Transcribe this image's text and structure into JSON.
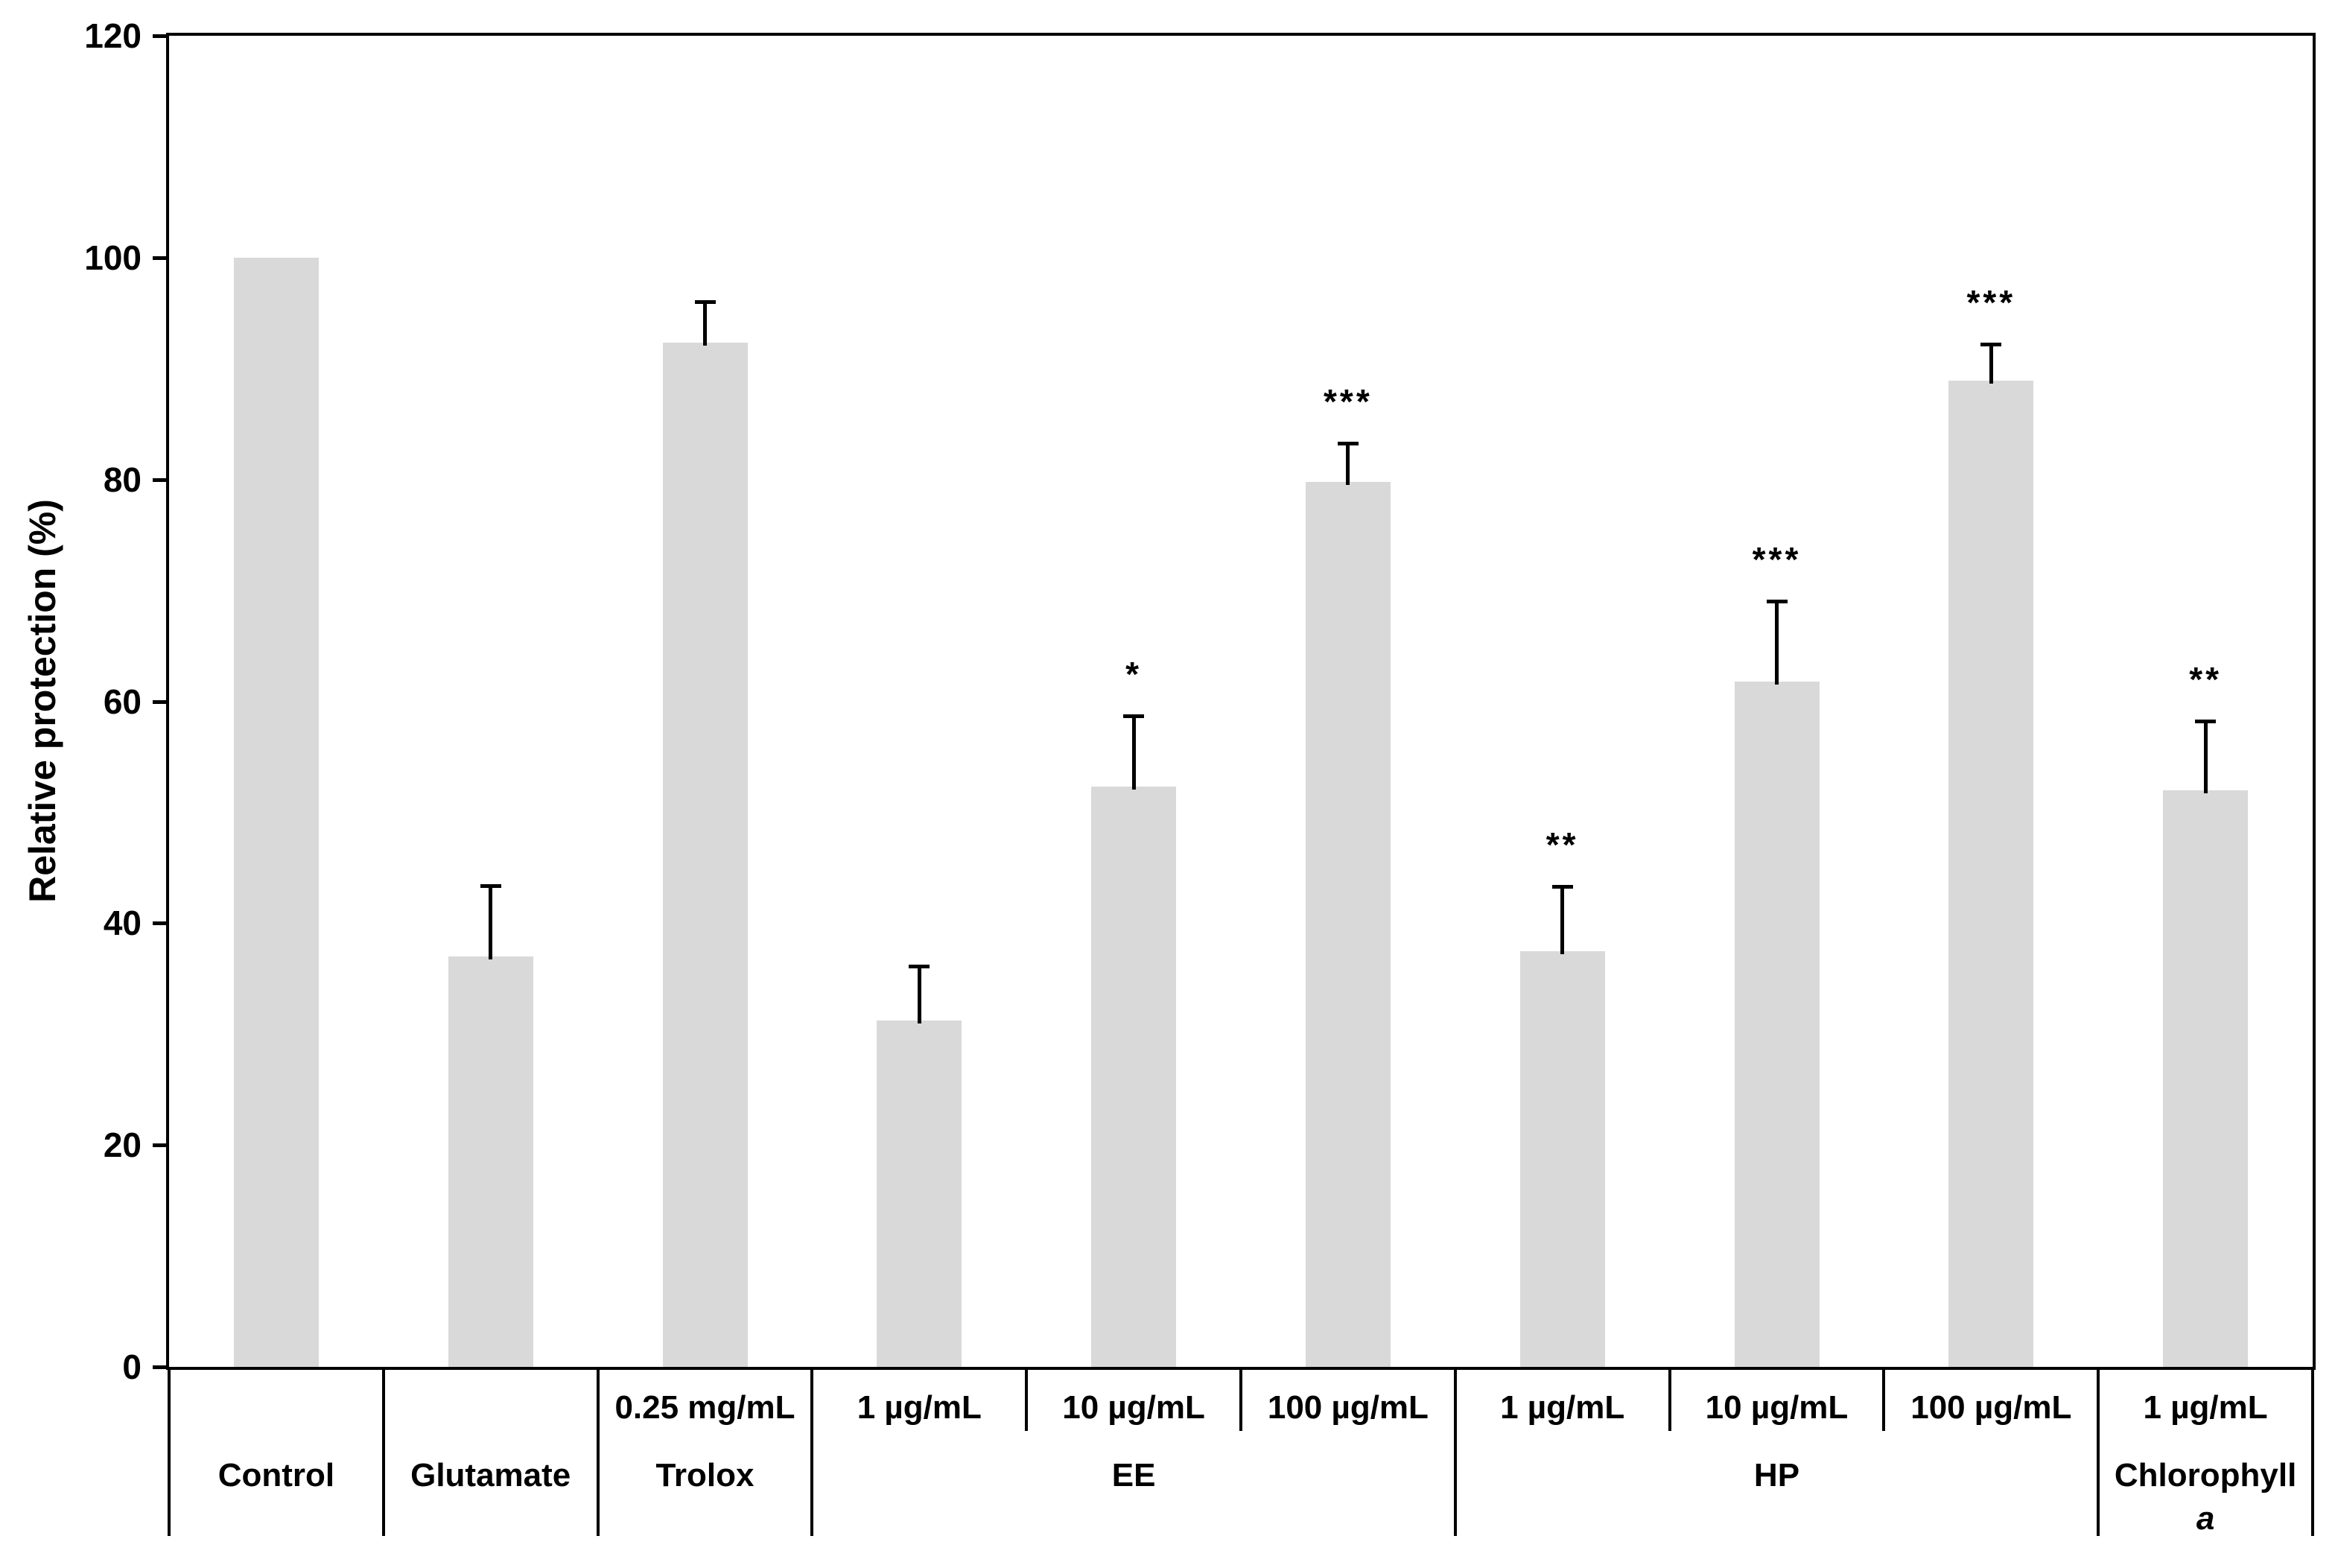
{
  "chart_data": {
    "type": "bar",
    "title": "",
    "xlabel": "",
    "ylabel": "Relative protection (%)",
    "ylim": [
      0,
      120
    ],
    "yticks": [
      0,
      20,
      40,
      60,
      80,
      100,
      120
    ],
    "grid": false,
    "legend": "none",
    "bar_color": "#d9d9d9",
    "axis_color": "#000000",
    "error_bar_color": "#000000",
    "groups": [
      {
        "label": "Control",
        "label_italic": "",
        "span": 1
      },
      {
        "label": "Glutamate",
        "label_italic": "",
        "span": 1
      },
      {
        "label": "Trolox",
        "label_italic": "",
        "span": 1
      },
      {
        "label": "EE",
        "label_italic": "",
        "span": 3
      },
      {
        "label": "HP",
        "label_italic": "",
        "span": 3
      },
      {
        "label": "Chlorophyll",
        "label_italic": "a",
        "span": 1
      }
    ],
    "bars": [
      {
        "group": "Control",
        "concentration": "",
        "value": 100.0,
        "error_up": 0,
        "stars": ""
      },
      {
        "group": "Glutamate",
        "concentration": "",
        "value": 37.0,
        "error_up": 6.4,
        "stars": ""
      },
      {
        "group": "Trolox",
        "concentration": "0.25 mg/mL",
        "value": 92.3,
        "error_up": 3.7,
        "stars": ""
      },
      {
        "group": "EE",
        "concentration": "1 µg/mL",
        "value": 31.2,
        "error_up": 4.9,
        "stars": ""
      },
      {
        "group": "EE",
        "concentration": "10 µg/mL",
        "value": 52.3,
        "error_up": 6.4,
        "stars": "*"
      },
      {
        "group": "EE",
        "concentration": "100 µg/mL",
        "value": 79.8,
        "error_up": 3.5,
        "stars": "***"
      },
      {
        "group": "HP",
        "concentration": "1 µg/mL",
        "value": 37.5,
        "error_up": 5.8,
        "stars": "**"
      },
      {
        "group": "HP",
        "concentration": "10 µg/mL",
        "value": 61.8,
        "error_up": 7.2,
        "stars": "***"
      },
      {
        "group": "HP",
        "concentration": "100 µg/mL",
        "value": 88.9,
        "error_up": 3.3,
        "stars": "***"
      },
      {
        "group": "Chlorophyll",
        "concentration": "1 µg/mL",
        "value": 52.0,
        "error_up": 6.2,
        "stars": "**"
      }
    ]
  }
}
